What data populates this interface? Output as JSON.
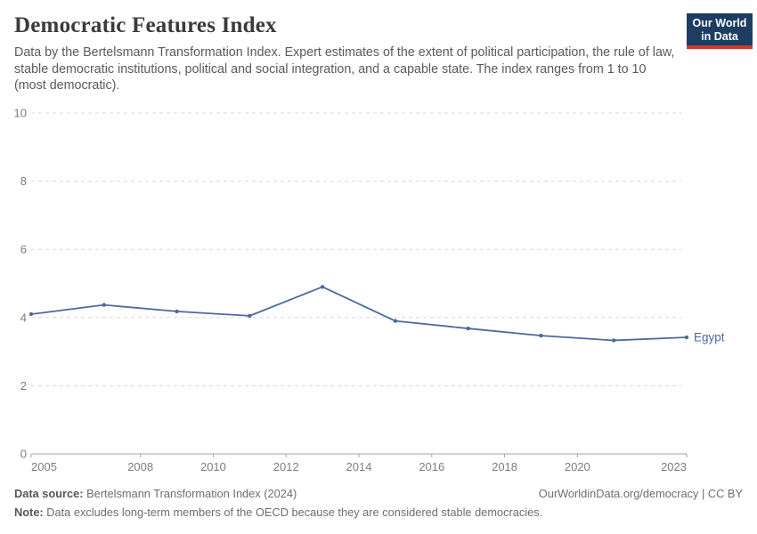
{
  "header": {
    "title": "Democratic Features Index",
    "subtitle": "Data by the Bertelsmann Transformation Index. Expert estimates of the extent of political participation, the rule of law, stable democratic institutions, political and social integration, and a capable state. The index ranges from 1 to 10 (most democratic).",
    "logo": {
      "line1": "Our World",
      "line2": "in Data",
      "bg": "#1d3d63",
      "accent": "#d13834"
    }
  },
  "chart_data": {
    "type": "line",
    "title": "Democratic Features Index",
    "xlabel": "",
    "ylabel": "",
    "x": [
      2005,
      2007,
      2009,
      2011,
      2013,
      2015,
      2017,
      2019,
      2021,
      2023
    ],
    "series": [
      {
        "name": "Egypt",
        "color": "#4c6a9c",
        "values": [
          4.1,
          4.37,
          4.18,
          4.05,
          4.9,
          3.9,
          3.68,
          3.47,
          3.33,
          3.42
        ]
      }
    ],
    "x_ticks": [
      2005,
      2008,
      2010,
      2012,
      2014,
      2016,
      2018,
      2020,
      2023
    ],
    "y_ticks": [
      0,
      2,
      4,
      6,
      8,
      10
    ],
    "xlim": [
      2005,
      2023
    ],
    "ylim": [
      0,
      10
    ],
    "grid": "horizontal-dashed",
    "legend_position": "end-of-line-label",
    "end_label": "Egypt"
  },
  "colors": {
    "line": "#4c6a9c",
    "grid": "#d8d8d8",
    "axis": "#a5a5a5",
    "tick_label": "#7d7d7d",
    "end_label": "#4c6a9c"
  },
  "footer": {
    "source_label": "Data source:",
    "source_text": " Bertelsmann Transformation Index (2024)",
    "credit": "OurWorldinData.org/democracy | CC BY",
    "note_label": "Note:",
    "note_text": " Data excludes long-term members of the OECD because they are considered stable democracies."
  }
}
